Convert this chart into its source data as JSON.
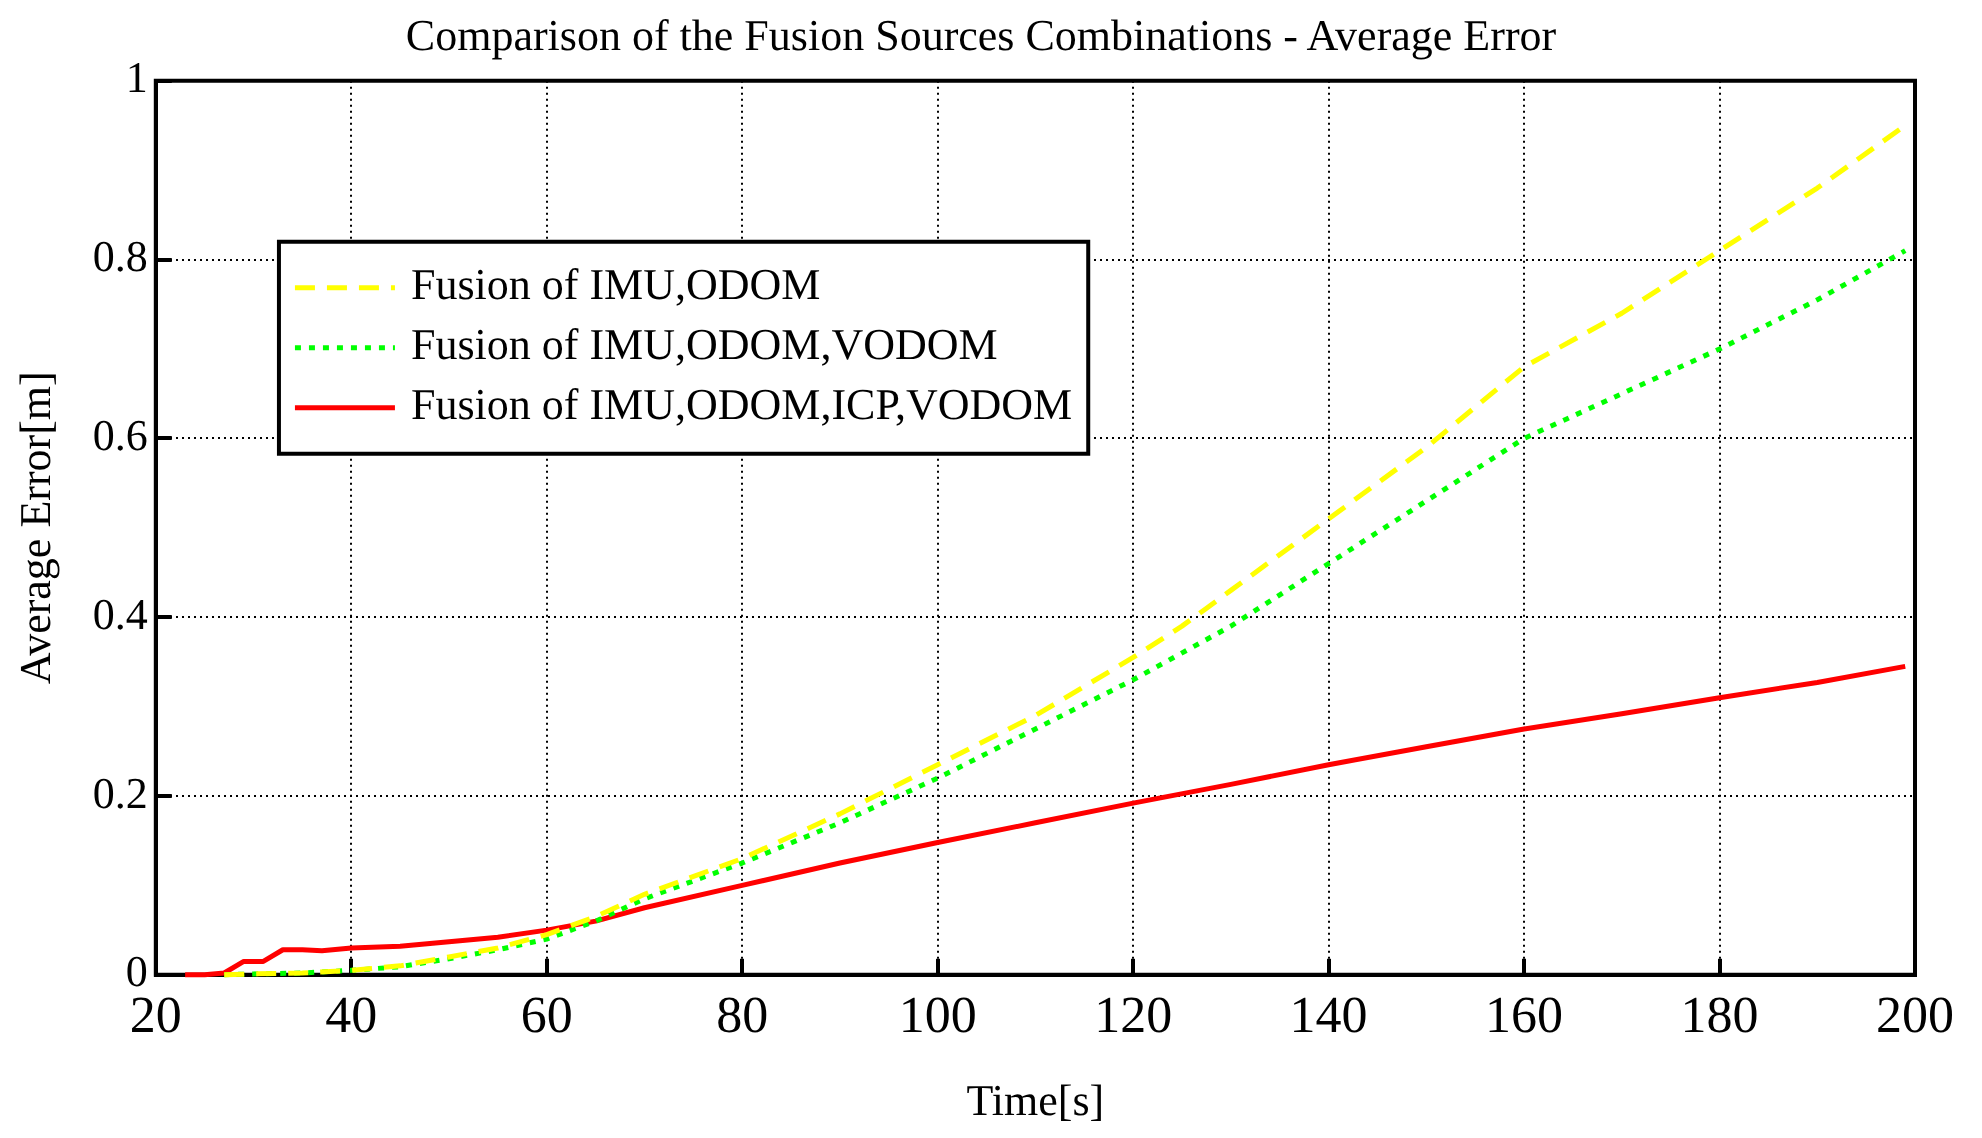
{
  "chart_data": {
    "type": "line",
    "title": "Comparison of the Fusion Sources Combinations - Average Error",
    "xlabel": "Time[s]",
    "ylabel": "Average Error[m]",
    "xlim": [
      20,
      200
    ],
    "xticks": [
      20,
      40,
      60,
      80,
      100,
      120,
      140,
      160,
      180,
      200
    ],
    "ylim": [
      0,
      1
    ],
    "yticks": [
      0,
      0.2,
      0.4,
      0.6,
      0.8,
      1
    ],
    "grid": true,
    "legend": "top left",
    "marker": "none",
    "series": [
      {
        "name": "Fusion of IMU,ODOM",
        "color": "#ffff00",
        "line_style": "dashed",
        "x": [
          27,
          30,
          35,
          40,
          45,
          50,
          55,
          60,
          65,
          70,
          80,
          90,
          100,
          110,
          120,
          125,
          130,
          140,
          150,
          160,
          170,
          180,
          190,
          199
        ],
        "values": [
          0,
          0.001,
          0.002,
          0.005,
          0.01,
          0.02,
          0.03,
          0.045,
          0.065,
          0.09,
          0.13,
          0.18,
          0.235,
          0.29,
          0.355,
          0.39,
          0.43,
          0.51,
          0.59,
          0.68,
          0.74,
          0.81,
          0.88,
          0.95
        ]
      },
      {
        "name": "Fusion of IMU,ODOM,VODOM",
        "color": "#00ff00",
        "line_style": "dotted",
        "x": [
          27,
          30,
          35,
          40,
          45,
          50,
          55,
          60,
          65,
          70,
          80,
          90,
          100,
          110,
          120,
          130,
          140,
          150,
          160,
          170,
          180,
          190,
          199
        ],
        "values": [
          0,
          0.001,
          0.002,
          0.005,
          0.009,
          0.018,
          0.028,
          0.04,
          0.06,
          0.085,
          0.125,
          0.17,
          0.22,
          0.275,
          0.33,
          0.39,
          0.46,
          0.53,
          0.6,
          0.65,
          0.7,
          0.755,
          0.81
        ]
      },
      {
        "name": "Fusion of IMU,ODOM,ICP,VODOM",
        "color": "#ff0000",
        "line_style": "solid",
        "x": [
          23,
          25,
          27,
          29,
          31,
          33,
          35,
          37,
          40,
          45,
          50,
          55,
          60,
          65,
          70,
          80,
          90,
          100,
          110,
          120,
          130,
          140,
          150,
          160,
          170,
          180,
          190,
          199
        ],
        "values": [
          0,
          0,
          0.002,
          0.015,
          0.015,
          0.028,
          0.028,
          0.027,
          0.03,
          0.032,
          0.037,
          0.042,
          0.05,
          0.06,
          0.075,
          0.1,
          0.125,
          0.148,
          0.17,
          0.192,
          0.213,
          0.235,
          0.255,
          0.275,
          0.292,
          0.31,
          0.327,
          0.345
        ]
      }
    ]
  }
}
